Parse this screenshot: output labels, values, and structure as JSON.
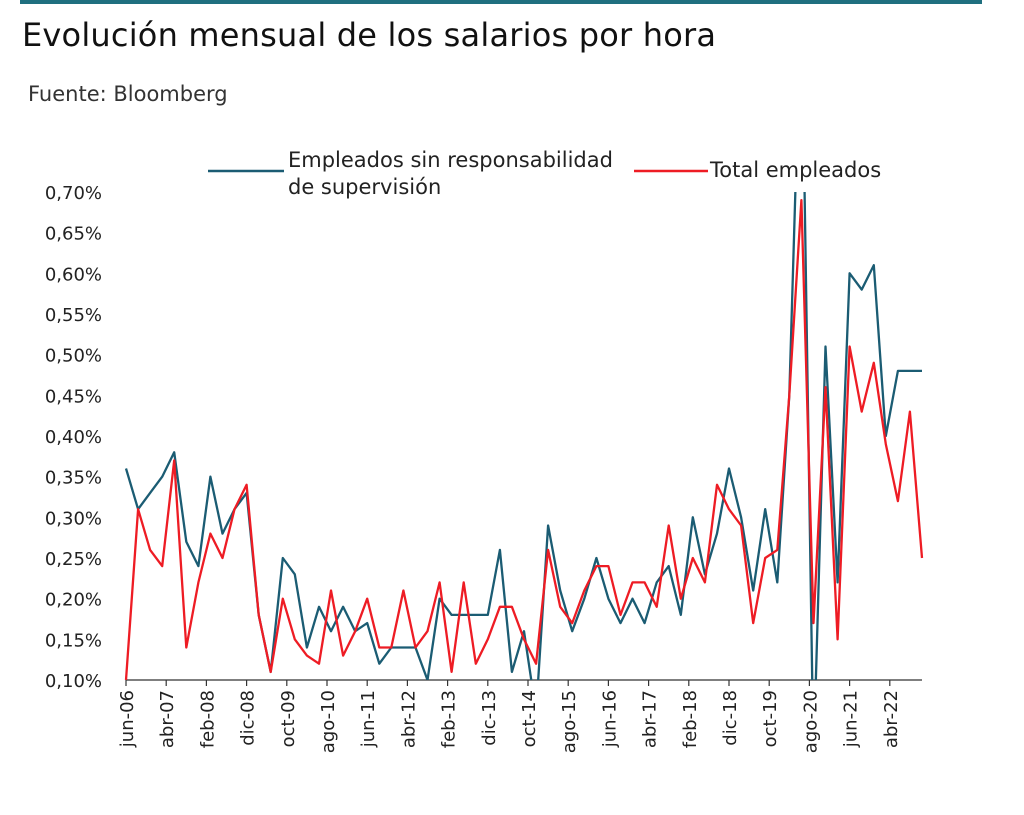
{
  "chart_data": {
    "type": "line",
    "title": "Evolución mensual de los salarios por hora",
    "source": "Fuente: Bloomberg",
    "xlabel": "",
    "ylabel": "",
    "ylim": [
      0.1,
      0.7
    ],
    "y_ticks": [
      "0,10%",
      "0,15%",
      "0,20%",
      "0,25%",
      "0,30%",
      "0,35%",
      "0,40%",
      "0,45%",
      "0,50%",
      "0,55%",
      "0,60%",
      "0,65%",
      "0,70%"
    ],
    "y_tick_values": [
      0.1,
      0.15,
      0.2,
      0.25,
      0.3,
      0.35,
      0.4,
      0.45,
      0.5,
      0.55,
      0.6,
      0.65,
      0.7
    ],
    "x_ticks": [
      "jun-06",
      "abr-07",
      "feb-08",
      "dic-08",
      "oct-09",
      "ago-10",
      "jun-11",
      "abr-12",
      "feb-13",
      "dic-13",
      "oct-14",
      "ago-15",
      "jun-16",
      "abr-17",
      "feb-18",
      "dic-18",
      "oct-19",
      "ago-20",
      "jun-21",
      "abr-22"
    ],
    "grid": false,
    "legend_position": "top",
    "series": [
      {
        "name": "Empleados sin responsabilidad de supervisión",
        "color": "#1b5c73",
        "values": [
          0.36,
          0.31,
          0.33,
          0.35,
          0.38,
          0.27,
          0.24,
          0.35,
          0.28,
          0.31,
          0.33,
          0.18,
          0.11,
          0.25,
          0.23,
          0.14,
          0.19,
          0.16,
          0.19,
          0.16,
          0.17,
          0.12,
          0.14,
          0.14,
          0.14,
          0.1,
          0.2,
          0.18,
          0.18,
          0.18,
          0.18,
          0.26,
          0.11,
          0.16,
          0.06,
          0.29,
          0.21,
          0.16,
          0.2,
          0.25,
          0.2,
          0.17,
          0.2,
          0.17,
          0.22,
          0.24,
          0.18,
          0.3,
          0.23,
          0.28,
          0.36,
          0.3,
          0.21,
          0.31,
          0.22,
          0.45,
          0.95,
          0.0,
          0.51,
          0.22,
          0.6,
          0.58,
          0.61,
          0.4,
          0.48,
          0.48,
          0.48
        ]
      },
      {
        "name": "Total empleados",
        "color": "#ee1c24",
        "values": [
          0.1,
          0.31,
          0.26,
          0.24,
          0.37,
          0.14,
          0.22,
          0.28,
          0.25,
          0.31,
          0.34,
          0.18,
          0.11,
          0.2,
          0.15,
          0.13,
          0.12,
          0.21,
          0.13,
          0.16,
          0.2,
          0.14,
          0.14,
          0.21,
          0.14,
          0.16,
          0.22,
          0.11,
          0.22,
          0.12,
          0.15,
          0.19,
          0.19,
          0.15,
          0.12,
          0.26,
          0.19,
          0.17,
          0.21,
          0.24,
          0.24,
          0.18,
          0.22,
          0.22,
          0.19,
          0.29,
          0.2,
          0.25,
          0.22,
          0.34,
          0.31,
          0.29,
          0.17,
          0.25,
          0.26,
          0.45,
          0.69,
          0.17,
          0.46,
          0.15,
          0.51,
          0.43,
          0.49,
          0.39,
          0.32,
          0.43,
          0.25
        ]
      }
    ]
  }
}
